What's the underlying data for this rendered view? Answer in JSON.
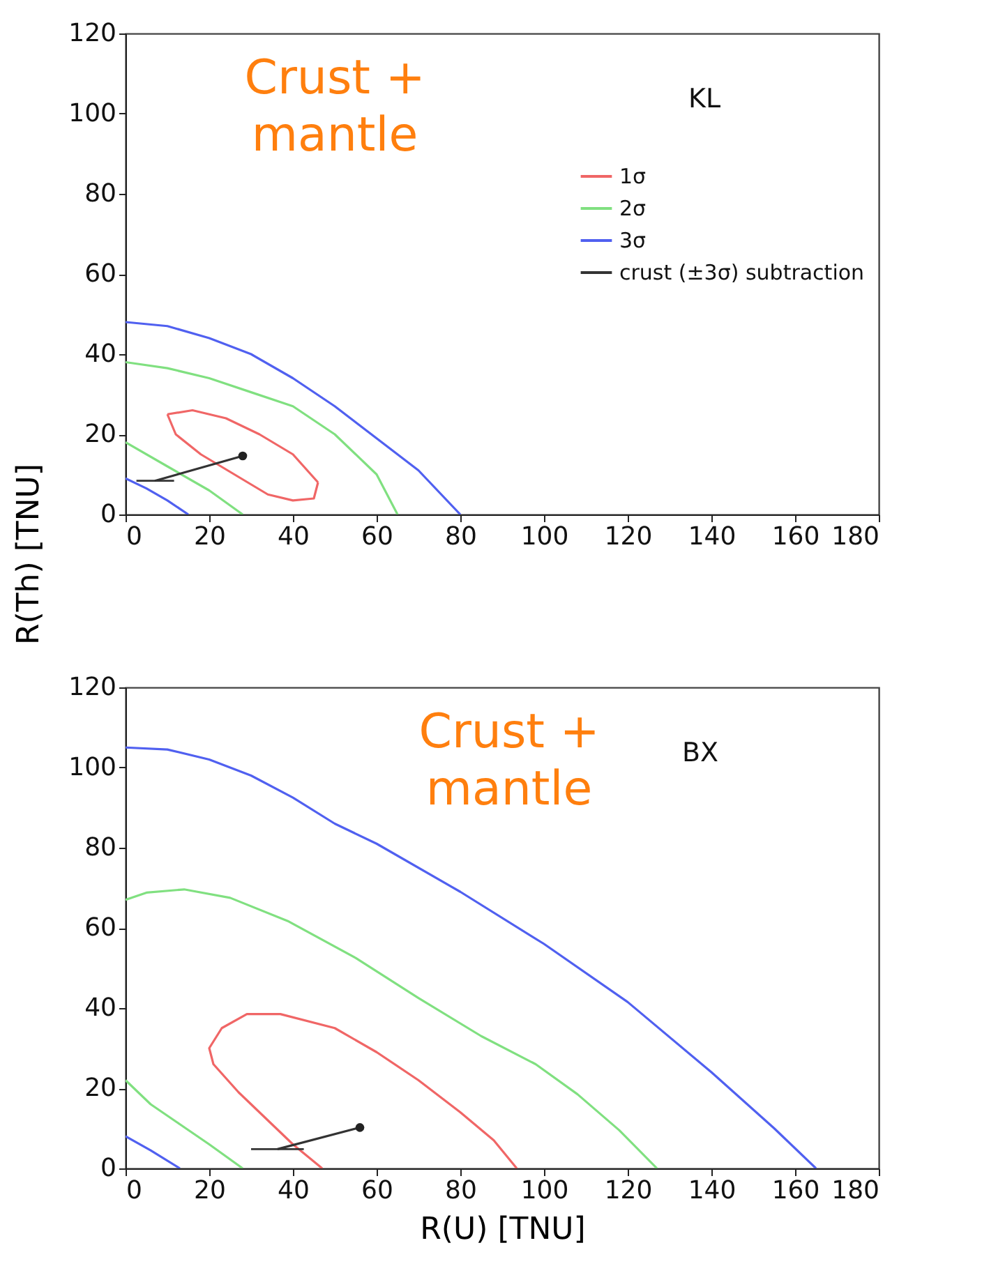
{
  "chart_data": [
    {
      "type": "line",
      "ylabel": "R(Th) [TNU]",
      "xlim": [
        0,
        180
      ],
      "ylim": [
        0,
        120
      ],
      "xticks": [
        0,
        20,
        40,
        60,
        80,
        100,
        120,
        140,
        160,
        180
      ],
      "yticks": [
        0,
        20,
        40,
        60,
        80,
        100,
        120
      ],
      "legend": "top right",
      "annotations": [
        "Crust +\nmantle",
        "KL"
      ],
      "series": [
        {
          "name": "1σ",
          "color": "#f06666",
          "x": [
            10,
            16,
            24,
            32,
            40,
            46
          ],
          "values": [
            25,
            26,
            24,
            20,
            15,
            8
          ]
        },
        {
          "color": "#f06666",
          "x": [
            46,
            45,
            40,
            34,
            26,
            18,
            12,
            10
          ],
          "values": [
            8,
            4,
            3.5,
            5,
            10,
            15,
            20,
            25
          ]
        },
        {
          "name": "2σ",
          "color": "#80e080",
          "x": [
            0,
            10,
            20,
            30,
            40,
            50,
            60,
            65
          ],
          "values": [
            38,
            36.5,
            34,
            30.5,
            27,
            20,
            10,
            0
          ]
        },
        {
          "color": "#80e080",
          "x": [
            0,
            10,
            20,
            28
          ],
          "values": [
            18,
            12,
            6,
            0
          ]
        },
        {
          "name": "3σ",
          "color": "#5060f0",
          "x": [
            0,
            10,
            20,
            30,
            40,
            50,
            60,
            70,
            80
          ],
          "values": [
            48,
            47,
            44,
            40,
            34,
            27,
            19,
            11,
            0
          ]
        },
        {
          "color": "#5060f0",
          "x": [
            0,
            5,
            10,
            15
          ],
          "values": [
            9,
            6.5,
            3.5,
            0
          ]
        },
        {
          "name": "crust (±3σ) subtraction",
          "color": "#333333",
          "x": [
            28,
            7
          ],
          "values": [
            14.6,
            8.4
          ],
          "xerrors": [
            null,
            [
              2.6,
              11.6
            ]
          ]
        },
        {
          "type": "scatter",
          "marker": "circle",
          "color": "#222222",
          "x": [
            28
          ],
          "values": [
            14.6
          ]
        }
      ]
    },
    {
      "type": "line",
      "xlabel": "R(U) [TNU]",
      "xlim": [
        0,
        180
      ],
      "ylim": [
        0,
        120
      ],
      "xticks": [
        0,
        20,
        40,
        60,
        80,
        100,
        120,
        140,
        160,
        180
      ],
      "yticks": [
        0,
        20,
        40,
        60,
        80,
        100,
        120
      ],
      "annotations": [
        "Crust +\nmantle",
        "BX"
      ],
      "series": [
        {
          "color": "#f06666",
          "x": [
            47,
            40,
            34,
            27,
            21,
            20,
            23,
            29,
            37,
            50,
            60,
            70,
            80,
            88,
            93.5
          ],
          "values": [
            0,
            6,
            12,
            19,
            26,
            30,
            35,
            38.5,
            38.5,
            35,
            29,
            22,
            14,
            7,
            0
          ]
        },
        {
          "color": "#80e080",
          "x": [
            0,
            5,
            14,
            25,
            39,
            55,
            70,
            85,
            98,
            108,
            118,
            127
          ],
          "values": [
            67,
            68.8,
            69.6,
            67.5,
            61.6,
            52.5,
            42.5,
            33,
            26,
            18.5,
            9.5,
            0
          ]
        },
        {
          "color": "#80e080",
          "x": [
            0,
            6,
            13,
            20,
            28
          ],
          "values": [
            22,
            16,
            11,
            6,
            0
          ]
        },
        {
          "color": "#5060f0",
          "x": [
            0,
            10,
            20,
            30,
            40,
            50,
            60,
            80,
            100,
            120,
            140,
            155,
            165
          ],
          "values": [
            105,
            104.5,
            102,
            98,
            92.5,
            86,
            81,
            69,
            56,
            41.5,
            24,
            10,
            0
          ]
        },
        {
          "color": "#5060f0",
          "x": [
            0,
            6,
            13
          ],
          "values": [
            8,
            4.5,
            0
          ]
        },
        {
          "color": "#333333",
          "x": [
            56,
            36.3
          ],
          "values": [
            10.2,
            4.8
          ],
          "xerrors": [
            null,
            [
              30,
              42.6
            ]
          ]
        },
        {
          "type": "scatter",
          "marker": "circle",
          "color": "#222222",
          "x": [
            56
          ],
          "values": [
            10.2
          ]
        }
      ]
    }
  ]
}
